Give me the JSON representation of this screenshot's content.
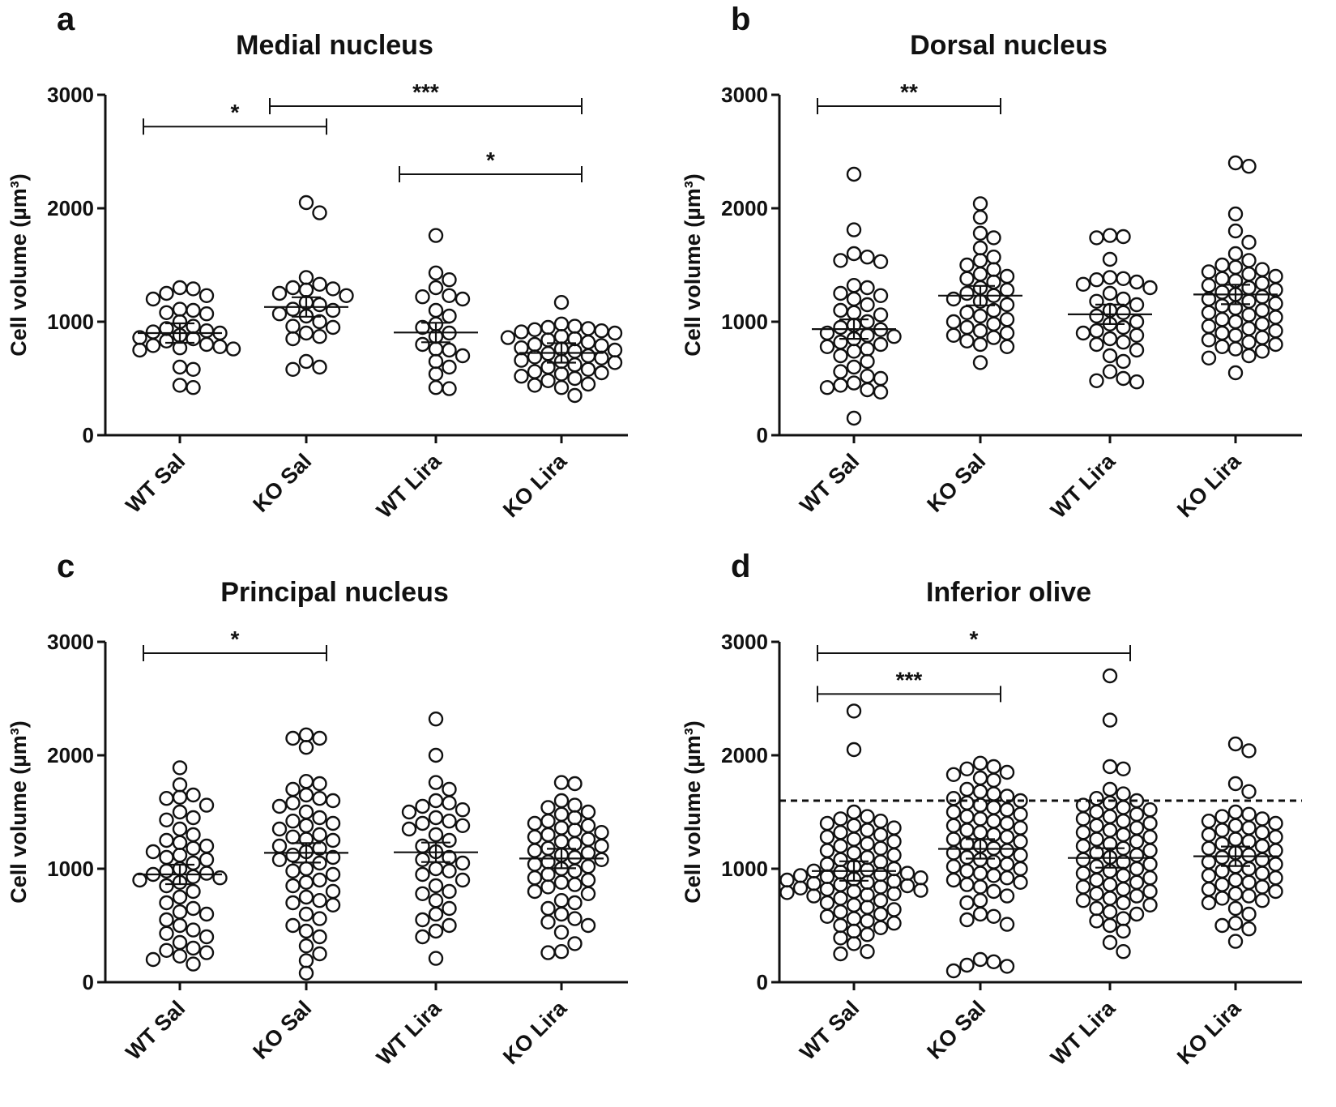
{
  "chart_data": [
    {
      "panel": "a",
      "type": "scatter",
      "title": "Medial nucleus",
      "ylabel": "Cell volume (µm³)",
      "yticks": [
        "0",
        "1000",
        "2000",
        "3000"
      ],
      "ylim": [
        0,
        3000
      ],
      "categories": [
        "WT Sal",
        "KO Sal",
        "WT Lira",
        "KO Lira"
      ],
      "means": [
        900,
        1130,
        905,
        725
      ],
      "series": [
        {
          "name": "WT Sal",
          "values": [
            1300,
            1290,
            1250,
            1230,
            1200,
            1110,
            1100,
            1080,
            1070,
            1000,
            960,
            940,
            920,
            910,
            900,
            880,
            860,
            850,
            830,
            800,
            790,
            780,
            770,
            760,
            750,
            600,
            580,
            440,
            420
          ]
        },
        {
          "name": "KO Sal",
          "values": [
            2050,
            1960,
            1390,
            1330,
            1300,
            1290,
            1280,
            1250,
            1230,
            1170,
            1150,
            1110,
            1100,
            1070,
            1050,
            1000,
            960,
            950,
            900,
            870,
            850,
            650,
            600,
            580
          ]
        },
        {
          "name": "WT Lira",
          "values": [
            1760,
            1430,
            1370,
            1300,
            1230,
            1220,
            1200,
            1100,
            1050,
            980,
            950,
            900,
            870,
            800,
            760,
            750,
            700,
            650,
            600,
            540,
            420,
            410
          ]
        },
        {
          "name": "KO Lira",
          "values": [
            1170,
            980,
            960,
            950,
            940,
            930,
            920,
            910,
            900,
            870,
            860,
            850,
            840,
            820,
            800,
            790,
            770,
            760,
            750,
            740,
            720,
            700,
            690,
            680,
            660,
            650,
            640,
            620,
            600,
            580,
            560,
            550,
            540,
            520,
            500,
            480,
            450,
            440,
            420,
            350
          ]
        }
      ],
      "brackets": [
        {
          "from": 0,
          "to": 1,
          "y": 2720,
          "label": "*"
        },
        {
          "from": 1,
          "to": 3,
          "y": 2900,
          "label": "***"
        },
        {
          "from": 2,
          "to": 3,
          "y": 2300,
          "label": "*"
        }
      ]
    },
    {
      "panel": "b",
      "type": "scatter",
      "title": "Dorsal nucleus",
      "ylabel": "Cell volume (µm³)",
      "yticks": [
        "0",
        "1000",
        "2000",
        "3000"
      ],
      "ylim": [
        0,
        3000
      ],
      "categories": [
        "WT Sal",
        "KO Sal",
        "WT Lira",
        "KO Lira"
      ],
      "means": [
        935,
        1230,
        1065,
        1240
      ],
      "series": [
        {
          "name": "WT Sal",
          "values": [
            2300,
            1810,
            1600,
            1570,
            1540,
            1530,
            1320,
            1300,
            1250,
            1230,
            1200,
            1150,
            1100,
            1080,
            1060,
            1000,
            970,
            950,
            930,
            900,
            880,
            870,
            850,
            820,
            800,
            780,
            760,
            740,
            700,
            650,
            600,
            560,
            520,
            500,
            460,
            440,
            420,
            400,
            380,
            150
          ]
        },
        {
          "name": "KO Sal",
          "values": [
            2040,
            1920,
            1780,
            1740,
            1650,
            1570,
            1540,
            1500,
            1460,
            1420,
            1400,
            1380,
            1350,
            1300,
            1280,
            1250,
            1230,
            1200,
            1180,
            1150,
            1100,
            1080,
            1050,
            1020,
            1000,
            980,
            950,
            920,
            900,
            880,
            860,
            830,
            800,
            780,
            640
          ]
        },
        {
          "name": "WT Lira",
          "values": [
            1760,
            1750,
            1740,
            1550,
            1390,
            1380,
            1370,
            1350,
            1330,
            1300,
            1250,
            1200,
            1180,
            1150,
            1100,
            1080,
            1050,
            1000,
            980,
            950,
            920,
            900,
            880,
            850,
            820,
            800,
            750,
            700,
            650,
            560,
            500,
            480,
            470
          ]
        },
        {
          "name": "KO Lira",
          "values": [
            2400,
            2370,
            1950,
            1800,
            1700,
            1600,
            1540,
            1500,
            1480,
            1460,
            1440,
            1420,
            1400,
            1380,
            1360,
            1340,
            1320,
            1300,
            1280,
            1260,
            1240,
            1220,
            1200,
            1180,
            1160,
            1140,
            1120,
            1100,
            1080,
            1060,
            1040,
            1020,
            1000,
            980,
            960,
            940,
            920,
            900,
            880,
            860,
            840,
            820,
            800,
            780,
            760,
            740,
            700,
            680,
            550
          ]
        }
      ],
      "brackets": [
        {
          "from": 0,
          "to": 1,
          "y": 2900,
          "label": "**"
        }
      ]
    },
    {
      "panel": "c",
      "type": "scatter",
      "title": "Principal nucleus",
      "ylabel": "Cell volume (µm³)",
      "yticks": [
        "0",
        "1000",
        "2000",
        "3000"
      ],
      "ylim": [
        0,
        3000
      ],
      "categories": [
        "WT Sal",
        "KO Sal",
        "WT Lira",
        "KO Lira"
      ],
      "means": [
        950,
        1140,
        1145,
        1090
      ],
      "series": [
        {
          "name": "WT Sal",
          "values": [
            1890,
            1740,
            1650,
            1630,
            1620,
            1560,
            1500,
            1450,
            1430,
            1350,
            1300,
            1250,
            1230,
            1200,
            1180,
            1150,
            1120,
            1100,
            1080,
            1050,
            1000,
            980,
            960,
            950,
            930,
            920,
            900,
            880,
            850,
            800,
            750,
            700,
            650,
            620,
            600,
            550,
            500,
            460,
            430,
            400,
            350,
            300,
            280,
            260,
            230,
            200,
            160
          ]
        },
        {
          "name": "KO Sal",
          "values": [
            2180,
            2150,
            2150,
            2070,
            1770,
            1750,
            1700,
            1650,
            1620,
            1600,
            1580,
            1550,
            1500,
            1450,
            1420,
            1400,
            1380,
            1350,
            1300,
            1280,
            1260,
            1250,
            1200,
            1180,
            1150,
            1120,
            1100,
            1080,
            1050,
            1000,
            980,
            950,
            900,
            880,
            850,
            800,
            750,
            720,
            700,
            680,
            600,
            560,
            500,
            450,
            400,
            320,
            250,
            190,
            80
          ]
        },
        {
          "name": "WT Lira",
          "values": [
            2320,
            2000,
            1760,
            1700,
            1600,
            1580,
            1550,
            1520,
            1500,
            1450,
            1420,
            1400,
            1380,
            1350,
            1300,
            1250,
            1200,
            1150,
            1100,
            1080,
            1050,
            1000,
            980,
            950,
            900,
            850,
            800,
            780,
            720,
            650,
            600,
            550,
            500,
            450,
            400,
            210
          ]
        },
        {
          "name": "KO Lira",
          "values": [
            1760,
            1750,
            1600,
            1560,
            1540,
            1500,
            1480,
            1450,
            1420,
            1400,
            1380,
            1360,
            1340,
            1320,
            1300,
            1280,
            1260,
            1240,
            1220,
            1200,
            1180,
            1160,
            1140,
            1120,
            1100,
            1080,
            1060,
            1040,
            1020,
            1000,
            980,
            950,
            920,
            900,
            880,
            860,
            840,
            800,
            780,
            720,
            700,
            650,
            600,
            560,
            530,
            500,
            440,
            340,
            270,
            260
          ]
        }
      ],
      "brackets": [
        {
          "from": 0,
          "to": 1,
          "y": 2900,
          "label": "*"
        }
      ]
    },
    {
      "panel": "d",
      "type": "scatter",
      "title": "Inferior olive",
      "ylabel": "Cell volume (µm³)",
      "yticks": [
        "0",
        "1000",
        "2000",
        "3000"
      ],
      "ylim": [
        0,
        3000
      ],
      "categories": [
        "WT Sal",
        "KO Sal",
        "WT Lira",
        "KO Lira"
      ],
      "means": [
        980,
        1175,
        1095,
        1110
      ],
      "reference_line": 1600,
      "series": [
        {
          "name": "WT Sal",
          "values": [
            2390,
            2050,
            1500,
            1460,
            1440,
            1420,
            1400,
            1380,
            1360,
            1340,
            1320,
            1300,
            1280,
            1260,
            1240,
            1220,
            1200,
            1180,
            1160,
            1140,
            1120,
            1100,
            1080,
            1060,
            1040,
            1020,
            1000,
            990,
            980,
            970,
            960,
            950,
            940,
            930,
            920,
            910,
            900,
            890,
            880,
            870,
            860,
            850,
            840,
            830,
            820,
            810,
            800,
            790,
            780,
            770,
            760,
            740,
            720,
            700,
            680,
            660,
            640,
            620,
            600,
            580,
            560,
            540,
            520,
            500,
            480,
            450,
            420,
            390,
            340,
            270,
            250
          ]
        },
        {
          "name": "KO Sal",
          "values": [
            1930,
            1900,
            1880,
            1850,
            1830,
            1800,
            1780,
            1700,
            1680,
            1660,
            1640,
            1620,
            1600,
            1580,
            1560,
            1540,
            1520,
            1500,
            1480,
            1460,
            1440,
            1420,
            1400,
            1380,
            1360,
            1340,
            1320,
            1300,
            1280,
            1260,
            1240,
            1220,
            1200,
            1180,
            1160,
            1140,
            1120,
            1100,
            1080,
            1060,
            1040,
            1020,
            1000,
            980,
            960,
            940,
            920,
            900,
            880,
            860,
            840,
            800,
            760,
            720,
            700,
            600,
            580,
            550,
            510,
            200,
            180,
            150,
            140,
            100
          ]
        },
        {
          "name": "WT Lira",
          "values": [
            2700,
            2310,
            1900,
            1880,
            1700,
            1660,
            1620,
            1600,
            1580,
            1560,
            1540,
            1520,
            1500,
            1480,
            1460,
            1440,
            1420,
            1400,
            1380,
            1360,
            1340,
            1320,
            1300,
            1280,
            1260,
            1240,
            1220,
            1200,
            1180,
            1160,
            1140,
            1120,
            1100,
            1080,
            1060,
            1040,
            1020,
            1000,
            980,
            960,
            940,
            920,
            900,
            880,
            860,
            840,
            820,
            800,
            780,
            760,
            740,
            720,
            700,
            680,
            650,
            620,
            600,
            560,
            540,
            500,
            450,
            350,
            270
          ]
        },
        {
          "name": "KO Lira",
          "values": [
            2100,
            2040,
            1750,
            1680,
            1500,
            1480,
            1460,
            1440,
            1420,
            1400,
            1380,
            1360,
            1340,
            1320,
            1300,
            1280,
            1260,
            1240,
            1220,
            1200,
            1180,
            1160,
            1140,
            1120,
            1100,
            1080,
            1060,
            1040,
            1020,
            1000,
            980,
            960,
            940,
            920,
            900,
            880,
            860,
            840,
            820,
            800,
            780,
            760,
            740,
            720,
            700,
            650,
            600,
            520,
            500,
            470,
            360
          ]
        }
      ],
      "brackets": [
        {
          "from": 0,
          "to": 2,
          "y": 2900,
          "label": "*"
        },
        {
          "from": 0,
          "to": 1,
          "y": 2540,
          "label": "***"
        }
      ]
    }
  ]
}
